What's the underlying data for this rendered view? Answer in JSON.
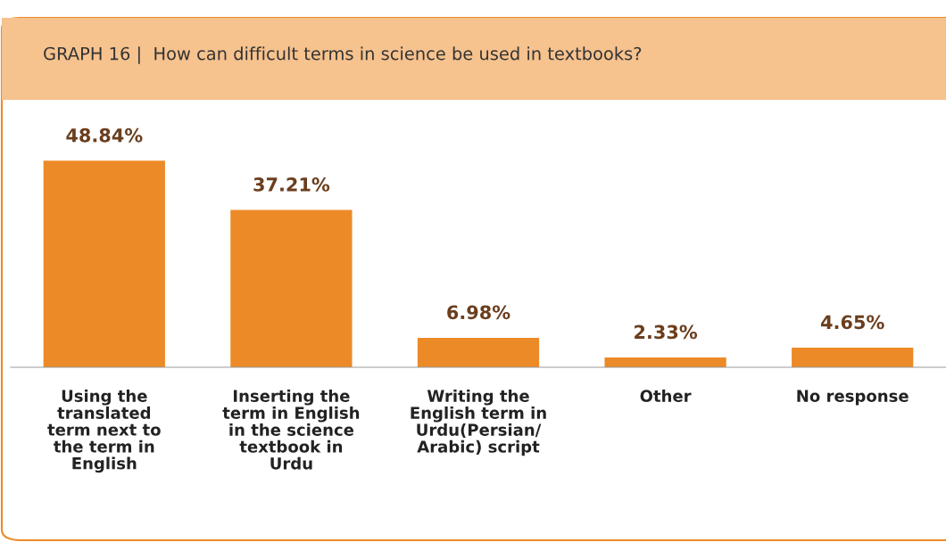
{
  "chart_data": {
    "type": "bar",
    "title": "GRAPH 16 |  How can difficult terms in science be used in textbooks?",
    "categories": [
      "Using the\ntranslated\nterm next to\nthe term in\nEnglish",
      "Inserting the\nterm in English\nin the science\ntextbook in\nUrdu",
      "Writing the\nEnglish term in\nUrdu(Persian/\nArabic) script",
      "Other",
      "No response"
    ],
    "values": [
      48.84,
      37.21,
      6.98,
      2.33,
      4.65
    ],
    "value_labels": [
      "48.84%",
      "37.21%",
      "6.98%",
      "2.33%",
      "4.65%"
    ],
    "color": "#ec8a27"
  }
}
